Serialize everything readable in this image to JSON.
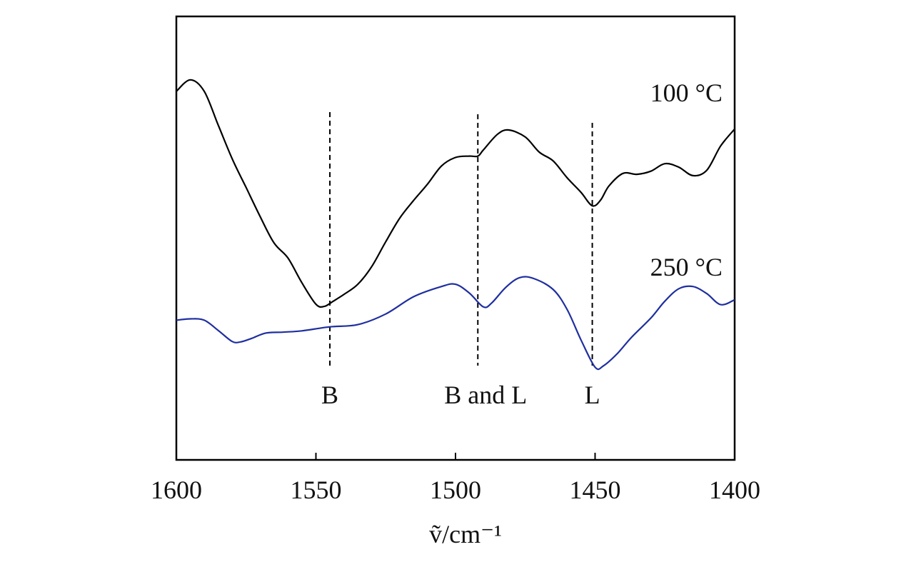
{
  "chart_data": {
    "type": "line",
    "title": "",
    "xlabel": "ṽ/cm⁻¹",
    "ylabel": "",
    "xlim": [
      1600,
      1400
    ],
    "x_reversed": true,
    "ylim": [
      0,
      1
    ],
    "y_ticks_shown": false,
    "grid": false,
    "x_ticks": [
      "1600",
      "1550",
      "1500",
      "1450",
      "1400"
    ],
    "tick_values": [
      1600,
      1550,
      1500,
      1450,
      1400
    ],
    "series": [
      {
        "name": "100 °C",
        "color": "#000000",
        "points": [
          [
            1600,
            0.831
          ],
          [
            1595,
            0.857
          ],
          [
            1590,
            0.831
          ],
          [
            1585,
            0.755
          ],
          [
            1580,
            0.679
          ],
          [
            1575,
            0.614
          ],
          [
            1570,
            0.549
          ],
          [
            1565,
            0.489
          ],
          [
            1560,
            0.455
          ],
          [
            1555,
            0.399
          ],
          [
            1550,
            0.351
          ],
          [
            1547,
            0.346
          ],
          [
            1544,
            0.357
          ],
          [
            1540,
            0.373
          ],
          [
            1535,
            0.396
          ],
          [
            1530,
            0.436
          ],
          [
            1525,
            0.492
          ],
          [
            1520,
            0.545
          ],
          [
            1515,
            0.585
          ],
          [
            1510,
            0.622
          ],
          [
            1505,
            0.663
          ],
          [
            1500,
            0.682
          ],
          [
            1495,
            0.685
          ],
          [
            1492,
            0.685
          ],
          [
            1490,
            0.699
          ],
          [
            1485,
            0.734
          ],
          [
            1481,
            0.744
          ],
          [
            1475,
            0.728
          ],
          [
            1470,
            0.694
          ],
          [
            1465,
            0.674
          ],
          [
            1460,
            0.636
          ],
          [
            1455,
            0.603
          ],
          [
            1451,
            0.573
          ],
          [
            1448,
            0.586
          ],
          [
            1445,
            0.618
          ],
          [
            1440,
            0.646
          ],
          [
            1435,
            0.644
          ],
          [
            1430,
            0.651
          ],
          [
            1425,
            0.668
          ],
          [
            1420,
            0.66
          ],
          [
            1415,
            0.641
          ],
          [
            1410,
            0.653
          ],
          [
            1405,
            0.708
          ],
          [
            1400,
            0.746
          ]
        ]
      },
      {
        "name": "250 °C",
        "color": "#1f2fa0",
        "points": [
          [
            1600,
            0.315
          ],
          [
            1595,
            0.318
          ],
          [
            1590,
            0.315
          ],
          [
            1585,
            0.292
          ],
          [
            1580,
            0.267
          ],
          [
            1577,
            0.266
          ],
          [
            1573,
            0.274
          ],
          [
            1568,
            0.286
          ],
          [
            1562,
            0.288
          ],
          [
            1555,
            0.291
          ],
          [
            1545,
            0.3
          ],
          [
            1535,
            0.305
          ],
          [
            1525,
            0.329
          ],
          [
            1515,
            0.368
          ],
          [
            1505,
            0.391
          ],
          [
            1500,
            0.396
          ],
          [
            1495,
            0.376
          ],
          [
            1490,
            0.345
          ],
          [
            1487,
            0.354
          ],
          [
            1482,
            0.389
          ],
          [
            1477,
            0.411
          ],
          [
            1472,
            0.409
          ],
          [
            1465,
            0.384
          ],
          [
            1460,
            0.339
          ],
          [
            1455,
            0.27
          ],
          [
            1450,
            0.209
          ],
          [
            1447,
            0.212
          ],
          [
            1442,
            0.24
          ],
          [
            1437,
            0.276
          ],
          [
            1430,
            0.32
          ],
          [
            1425,
            0.358
          ],
          [
            1420,
            0.386
          ],
          [
            1415,
            0.391
          ],
          [
            1410,
            0.375
          ],
          [
            1405,
            0.35
          ],
          [
            1400,
            0.361
          ]
        ]
      }
    ],
    "reference_lines": [
      {
        "x": 1545,
        "label": "B"
      },
      {
        "x": 1492,
        "label": "B and L"
      },
      {
        "x": 1451,
        "label": "L"
      }
    ]
  }
}
